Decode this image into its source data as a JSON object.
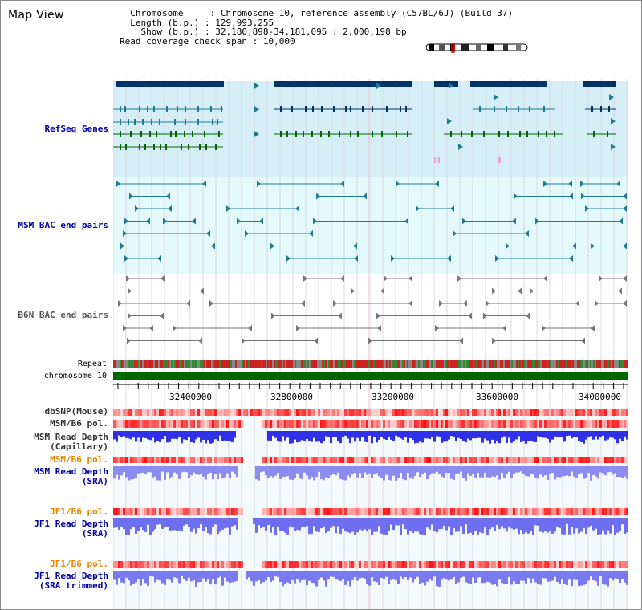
{
  "title": "Map View",
  "info": {
    "chromosome_label": "Chromosome",
    "chromosome_value": "Chromosome 10, reference assembly (C57BL/6J) (Build 37)",
    "length_label": "Length (b.p.)",
    "length_value": "129,993,255",
    "show_label": "Show (b.p.)",
    "show_value": "32,180,898-34,181,095 : 2,000,198 bp",
    "span_label": "Read coverage check span",
    "span_value": "10,000"
  },
  "tracks": {
    "refseq": "RefSeq Genes",
    "msm_bac": "MSM BAC end pairs",
    "b6n_bac": "B6N BAC end pairs",
    "repeat": "Repeat",
    "chromosome": "chromosome 10",
    "dbsnp": "dbSNP(Mouse)",
    "msm_b6_pol_1": "MSM/B6 pol.",
    "msm_depth_cap_1": "MSM Read Depth",
    "msm_depth_cap_2": "(Capillary)",
    "msm_b6_pol_2": "MSM/B6 pol.",
    "msm_depth_sra_1": "MSM Read Depth",
    "msm_depth_sra_2": "(SRA)",
    "jf1_b6_pol_1": "JF1/B6 pol.",
    "jf1_depth_sra_1": "JF1 Read Depth",
    "jf1_depth_sra_2": "(SRA)",
    "jf1_b6_pol_2": "JF1/B6 pol.",
    "jf1_depth_trim_1": "JF1 Read Depth",
    "jf1_depth_trim_2": "(SRA trimmed)"
  },
  "axis": {
    "ticks": [
      "32400000",
      "32800000",
      "33200000",
      "33600000",
      "34000000"
    ]
  },
  "colors": {
    "label_blue": "#0000a0",
    "label_orange": "#e08800",
    "refseq_bg": "#d6eef8",
    "msm_bg": "#e4fafa",
    "gene_dark": "#003366",
    "gene_green": "#006600",
    "bac_teal": "#1f7a94",
    "bac_gray": "#777777",
    "chrom_green": "#006600"
  }
}
